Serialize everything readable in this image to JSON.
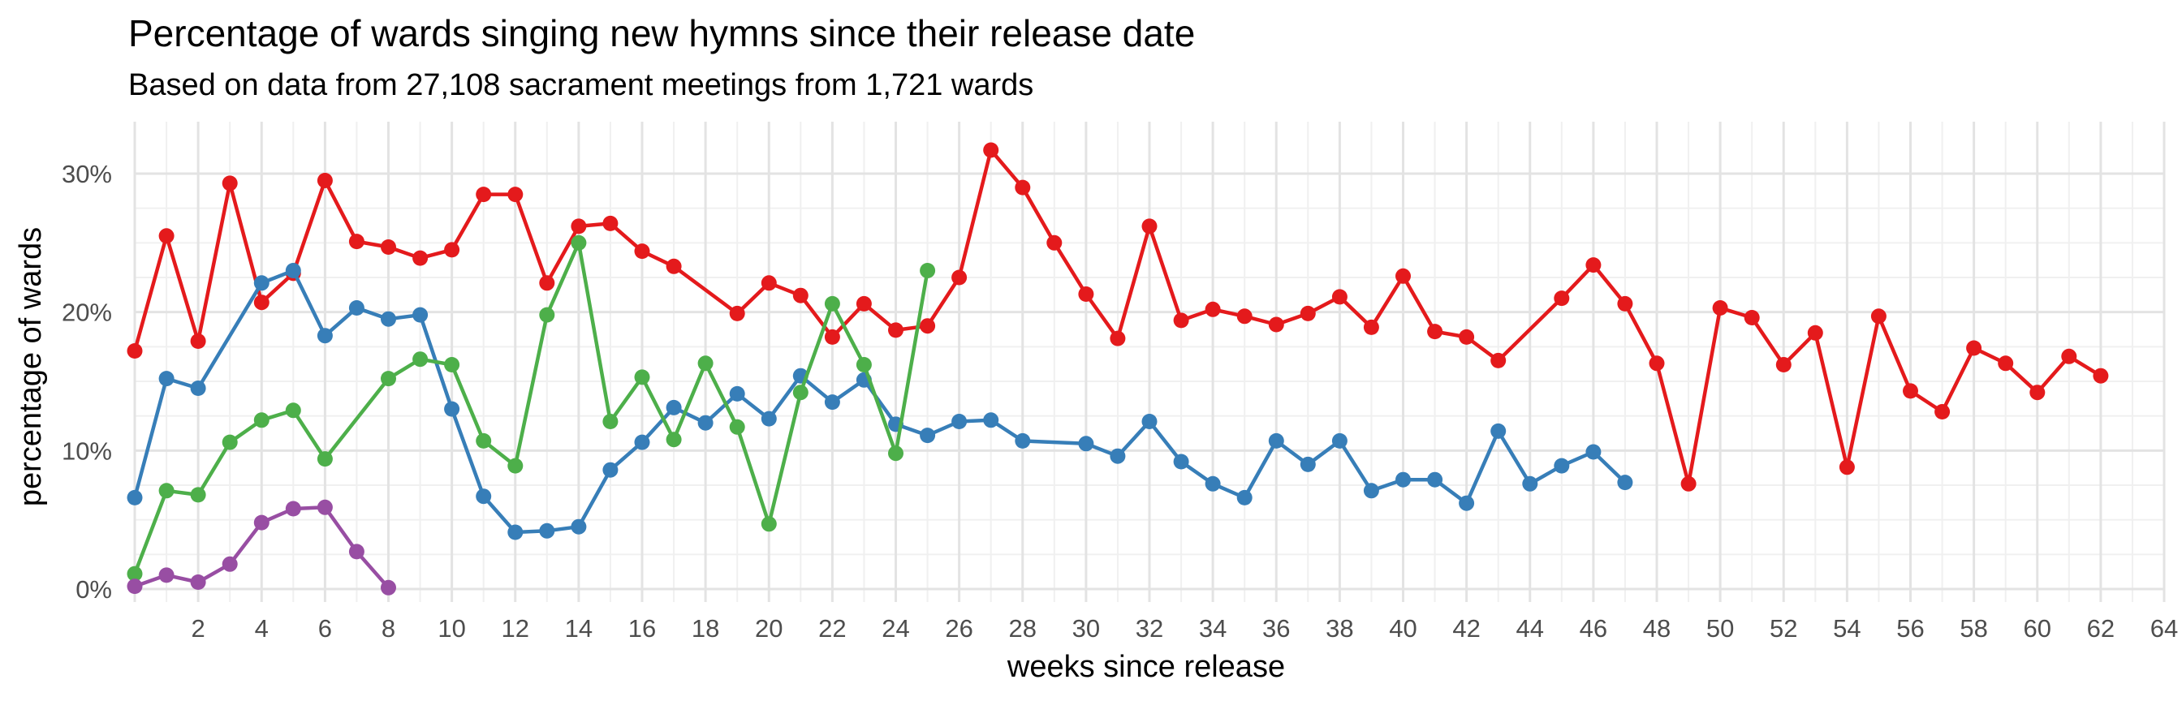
{
  "chart_data": {
    "type": "line",
    "title": "Percentage of wards singing new hymns since their release date",
    "subtitle": "Based on data from 27,108 sacrament meetings from 1,721 wards",
    "xlabel": "weeks since release",
    "ylabel": "percentage of wards",
    "xlim": [
      0,
      64
    ],
    "ylim": [
      0,
      30
    ],
    "x_ticks": [
      2,
      4,
      6,
      8,
      10,
      12,
      14,
      16,
      18,
      20,
      22,
      24,
      26,
      28,
      30,
      32,
      34,
      36,
      38,
      40,
      42,
      44,
      46,
      48,
      50,
      52,
      54,
      56,
      58,
      60,
      62,
      64
    ],
    "y_ticks": [
      0,
      10,
      20,
      30
    ],
    "y_tick_labels": [
      "0%",
      "10%",
      "20%",
      "30%"
    ],
    "grid": true,
    "legend": "none",
    "series": [
      {
        "color": "#e41a1c",
        "points": [
          [
            0,
            17.2
          ],
          [
            1,
            25.5
          ],
          [
            2,
            17.9
          ],
          [
            3,
            29.3
          ],
          [
            4,
            20.7
          ],
          [
            5,
            22.8
          ],
          [
            6,
            29.5
          ],
          [
            7,
            25.1
          ],
          [
            8,
            24.7
          ],
          [
            9,
            23.9
          ],
          [
            10,
            24.5
          ],
          [
            11,
            28.5
          ],
          [
            12,
            28.5
          ],
          [
            13,
            22.1
          ],
          [
            14,
            26.2
          ],
          [
            15,
            26.4
          ],
          [
            16,
            24.4
          ],
          [
            17,
            23.3
          ],
          [
            19,
            19.9
          ],
          [
            20,
            22.1
          ],
          [
            21,
            21.2
          ],
          [
            22,
            18.2
          ],
          [
            23,
            20.6
          ],
          [
            24,
            18.7
          ],
          [
            25,
            19.0
          ],
          [
            26,
            22.5
          ],
          [
            27,
            31.7
          ],
          [
            28,
            29.0
          ],
          [
            29,
            25.0
          ],
          [
            30,
            21.3
          ],
          [
            31,
            18.1
          ],
          [
            32,
            26.2
          ],
          [
            33,
            19.4
          ],
          [
            34,
            20.2
          ],
          [
            35,
            19.7
          ],
          [
            36,
            19.1
          ],
          [
            37,
            19.9
          ],
          [
            38,
            21.1
          ],
          [
            39,
            18.9
          ],
          [
            40,
            22.6
          ],
          [
            41,
            18.6
          ],
          [
            42,
            18.2
          ],
          [
            43,
            16.5
          ],
          [
            45,
            21.0
          ],
          [
            46,
            23.4
          ],
          [
            47,
            20.6
          ],
          [
            48,
            16.3
          ],
          [
            49,
            7.6
          ],
          [
            50,
            20.3
          ],
          [
            51,
            19.6
          ],
          [
            52,
            16.2
          ],
          [
            53,
            18.5
          ],
          [
            54,
            8.8
          ],
          [
            55,
            19.7
          ],
          [
            56,
            14.3
          ],
          [
            57,
            12.8
          ],
          [
            58,
            17.4
          ],
          [
            59,
            16.3
          ],
          [
            60,
            14.2
          ],
          [
            61,
            16.8
          ],
          [
            62,
            15.4
          ]
        ]
      },
      {
        "color": "#377eb8",
        "points": [
          [
            0,
            6.6
          ],
          [
            1,
            15.2
          ],
          [
            2,
            14.5
          ],
          [
            4,
            22.1
          ],
          [
            5,
            23.0
          ],
          [
            6,
            18.3
          ],
          [
            7,
            20.3
          ],
          [
            8,
            19.5
          ],
          [
            9,
            19.8
          ],
          [
            10,
            13.0
          ],
          [
            11,
            6.7
          ],
          [
            12,
            4.1
          ],
          [
            13,
            4.2
          ],
          [
            14,
            4.5
          ],
          [
            15,
            8.6
          ],
          [
            16,
            10.6
          ],
          [
            17,
            13.1
          ],
          [
            18,
            12.0
          ],
          [
            19,
            14.1
          ],
          [
            20,
            12.3
          ],
          [
            21,
            15.4
          ],
          [
            22,
            13.5
          ],
          [
            23,
            15.1
          ],
          [
            24,
            11.9
          ],
          [
            25,
            11.1
          ],
          [
            26,
            12.1
          ],
          [
            27,
            12.2
          ],
          [
            28,
            10.7
          ],
          [
            30,
            10.5
          ],
          [
            31,
            9.6
          ],
          [
            32,
            12.1
          ],
          [
            33,
            9.2
          ],
          [
            34,
            7.6
          ],
          [
            35,
            6.6
          ],
          [
            36,
            10.7
          ],
          [
            37,
            9.0
          ],
          [
            38,
            10.7
          ],
          [
            39,
            7.1
          ],
          [
            40,
            7.9
          ],
          [
            41,
            7.9
          ],
          [
            42,
            6.2
          ],
          [
            43,
            11.4
          ],
          [
            44,
            7.6
          ],
          [
            45,
            8.9
          ],
          [
            46,
            9.9
          ],
          [
            47,
            7.7
          ]
        ]
      },
      {
        "color": "#4daf4a",
        "points": [
          [
            0,
            1.1
          ],
          [
            1,
            7.1
          ],
          [
            2,
            6.8
          ],
          [
            3,
            10.6
          ],
          [
            4,
            12.2
          ],
          [
            5,
            12.9
          ],
          [
            6,
            9.4
          ],
          [
            8,
            15.2
          ],
          [
            9,
            16.6
          ],
          [
            10,
            16.2
          ],
          [
            11,
            10.7
          ],
          [
            12,
            8.9
          ],
          [
            13,
            19.8
          ],
          [
            14,
            25.0
          ],
          [
            15,
            12.1
          ],
          [
            16,
            15.3
          ],
          [
            17,
            10.8
          ],
          [
            18,
            16.3
          ],
          [
            19,
            11.7
          ],
          [
            20,
            4.7
          ],
          [
            21,
            14.2
          ],
          [
            22,
            20.6
          ],
          [
            23,
            16.2
          ],
          [
            24,
            9.8
          ],
          [
            25,
            23.0
          ]
        ]
      },
      {
        "color": "#984ea3",
        "points": [
          [
            0,
            0.2
          ],
          [
            1,
            1.0
          ],
          [
            2,
            0.5
          ],
          [
            3,
            1.8
          ],
          [
            4,
            4.8
          ],
          [
            5,
            5.8
          ],
          [
            6,
            5.9
          ],
          [
            7,
            2.7
          ],
          [
            8,
            0.1
          ]
        ]
      }
    ]
  }
}
